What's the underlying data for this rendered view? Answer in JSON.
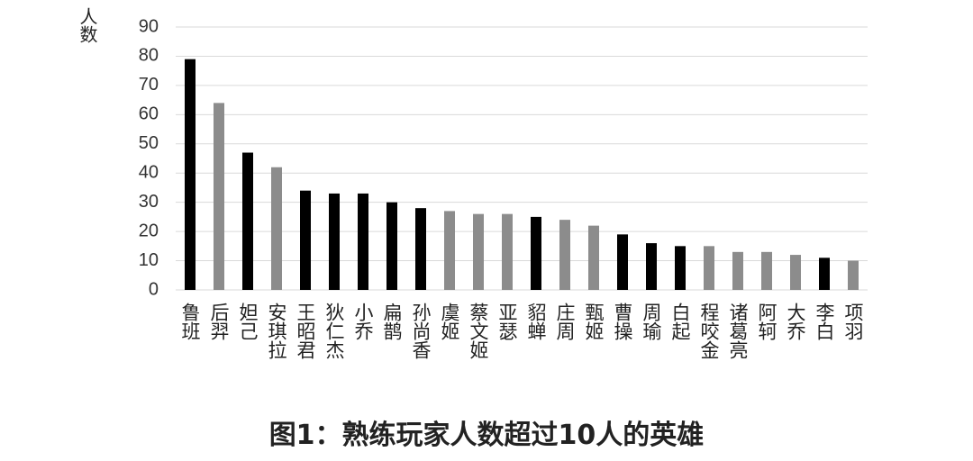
{
  "chart_data": {
    "type": "bar",
    "title": "图1：熟练玩家人数超过10人的英雄",
    "y_label": "人数",
    "categories": [
      "鲁班",
      "后羿",
      "妲己",
      "安琪拉",
      "王昭君",
      "狄仁杰",
      "小乔",
      "扁鹊",
      "孙尚香",
      "虞姬",
      "蔡文姬",
      "亚瑟",
      "貂蝉",
      "庄周",
      "甄姬",
      "曹操",
      "周瑜",
      "白起",
      "程咬金",
      "诸葛亮",
      "阿轲",
      "大乔",
      "李白",
      "项羽"
    ],
    "values": [
      79,
      64,
      47,
      42,
      34,
      33,
      33,
      30,
      28,
      27,
      26,
      26,
      25,
      24,
      22,
      19,
      16,
      15,
      15,
      13,
      13,
      12,
      11,
      10
    ],
    "colors": [
      "#000000",
      "#8c8c8c",
      "#000000",
      "#8c8c8c",
      "#000000",
      "#000000",
      "#000000",
      "#000000",
      "#000000",
      "#8c8c8c",
      "#8c8c8c",
      "#8c8c8c",
      "#000000",
      "#8c8c8c",
      "#8c8c8c",
      "#000000",
      "#000000",
      "#000000",
      "#8c8c8c",
      "#8c8c8c",
      "#8c8c8c",
      "#8c8c8c",
      "#000000",
      "#8c8c8c"
    ],
    "ylim": [
      0,
      90
    ],
    "yticks": [
      0,
      10,
      20,
      30,
      40,
      50,
      60,
      70,
      80,
      90
    ],
    "grid": true
  }
}
